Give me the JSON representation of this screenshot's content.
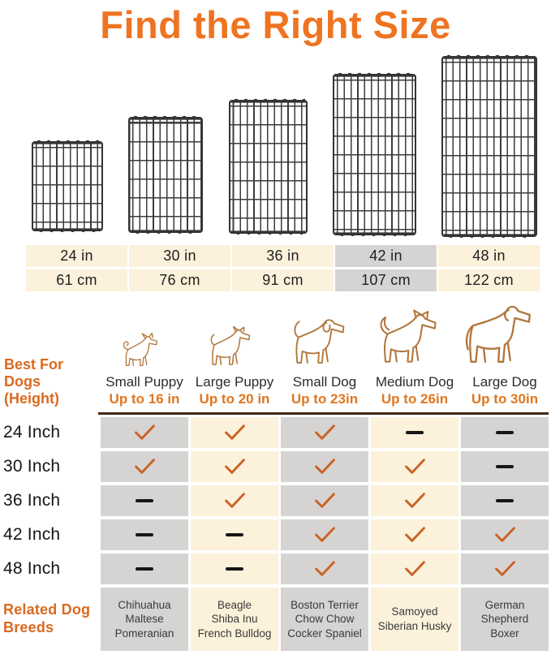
{
  "title": "Find the Right Size",
  "panel_icons": [
    "wire-grid-panel-24in",
    "wire-grid-panel-30in",
    "wire-grid-panel-36in",
    "wire-grid-panel-42in",
    "wire-grid-panel-48in"
  ],
  "size_table": {
    "columns": [
      {
        "inches": "24 in",
        "cm": "61 cm",
        "highlighted": false
      },
      {
        "inches": "30 in",
        "cm": "76 cm",
        "highlighted": false
      },
      {
        "inches": "36 in",
        "cm": "91 cm",
        "highlighted": false
      },
      {
        "inches": "42 in",
        "cm": "107 cm",
        "highlighted": true
      },
      {
        "inches": "48 in",
        "cm": "122 cm",
        "highlighted": false
      }
    ]
  },
  "dogs": {
    "label_line1": "Best For Dogs",
    "label_line2": "(Height)",
    "columns": [
      {
        "icon": "small-puppy-icon",
        "name": "Small Puppy",
        "max_height": "Up to 16 in"
      },
      {
        "icon": "large-puppy-icon",
        "name": "Large Puppy",
        "max_height": "Up to 20 in"
      },
      {
        "icon": "small-dog-icon",
        "name": "Small Dog",
        "max_height": "Up to 23in"
      },
      {
        "icon": "medium-dog-icon",
        "name": "Medium Dog",
        "max_height": "Up to 26in"
      },
      {
        "icon": "large-dog-icon",
        "name": "Large Dog",
        "max_height": "Up to 30in"
      }
    ]
  },
  "matrix": {
    "rows": [
      {
        "label": "24 Inch",
        "cells": [
          "check",
          "check",
          "check",
          "dash",
          "dash"
        ]
      },
      {
        "label": "30 Inch",
        "cells": [
          "check",
          "check",
          "check",
          "check",
          "dash"
        ]
      },
      {
        "label": "36 Inch",
        "cells": [
          "dash",
          "check",
          "check",
          "check",
          "dash"
        ]
      },
      {
        "label": "42 Inch",
        "cells": [
          "dash",
          "dash",
          "check",
          "check",
          "check"
        ]
      },
      {
        "label": "48 Inch",
        "cells": [
          "dash",
          "dash",
          "check",
          "check",
          "check"
        ]
      }
    ]
  },
  "breeds": {
    "label_line1": "Related Dog",
    "label_line2": "Breeds",
    "columns": [
      [
        "Chihuahua",
        "Maltese",
        "Pomeranian"
      ],
      [
        "Beagle",
        "Shiba Inu",
        "French Bulldog"
      ],
      [
        "Boston Terrier",
        "Chow Chow",
        "Cocker Spaniel"
      ],
      [
        "Samoyed",
        "Siberian Husky"
      ],
      [
        "German",
        "Shepherd",
        "Boxer"
      ]
    ]
  },
  "colors": {
    "accent_orange": "#ee7421",
    "label_orange": "#da6a1f",
    "check_orange": "#c96325",
    "cream": "#fcf1da",
    "gray": "#d5d4d3",
    "dog_outline": "#b1763c",
    "matrix_top_border": "#3f2817"
  },
  "chart_data": {
    "type": "table",
    "title": "Find the Right Size",
    "panel_widths_in": [
      "24 in",
      "30 in",
      "36 in",
      "42 in",
      "48 in"
    ],
    "panel_widths_cm": [
      "61 cm",
      "76 cm",
      "91 cm",
      "107 cm",
      "122 cm"
    ],
    "highlighted_width": "42 in (107 cm)",
    "columns": [
      "Small Puppy Up to 16 in",
      "Large Puppy Up to 20 in",
      "Small Dog Up to 23in",
      "Medium Dog Up to 26in",
      "Large Dog Up to 30in"
    ],
    "rows": [
      {
        "label": "24 Inch",
        "fits": [
          true,
          true,
          true,
          false,
          false
        ]
      },
      {
        "label": "30 Inch",
        "fits": [
          true,
          true,
          true,
          true,
          false
        ]
      },
      {
        "label": "36 Inch",
        "fits": [
          false,
          true,
          true,
          true,
          false
        ]
      },
      {
        "label": "42 Inch",
        "fits": [
          false,
          false,
          true,
          true,
          true
        ]
      },
      {
        "label": "48 Inch",
        "fits": [
          false,
          false,
          true,
          true,
          true
        ]
      }
    ],
    "related_breeds": [
      "Chihuahua / Maltese / Pomeranian",
      "Beagle / Shiba Inu / French Bulldog",
      "Boston Terrier / Chow Chow / Cocker Spaniel",
      "Samoyed / Siberian Husky",
      "German Shepherd / Boxer"
    ]
  }
}
